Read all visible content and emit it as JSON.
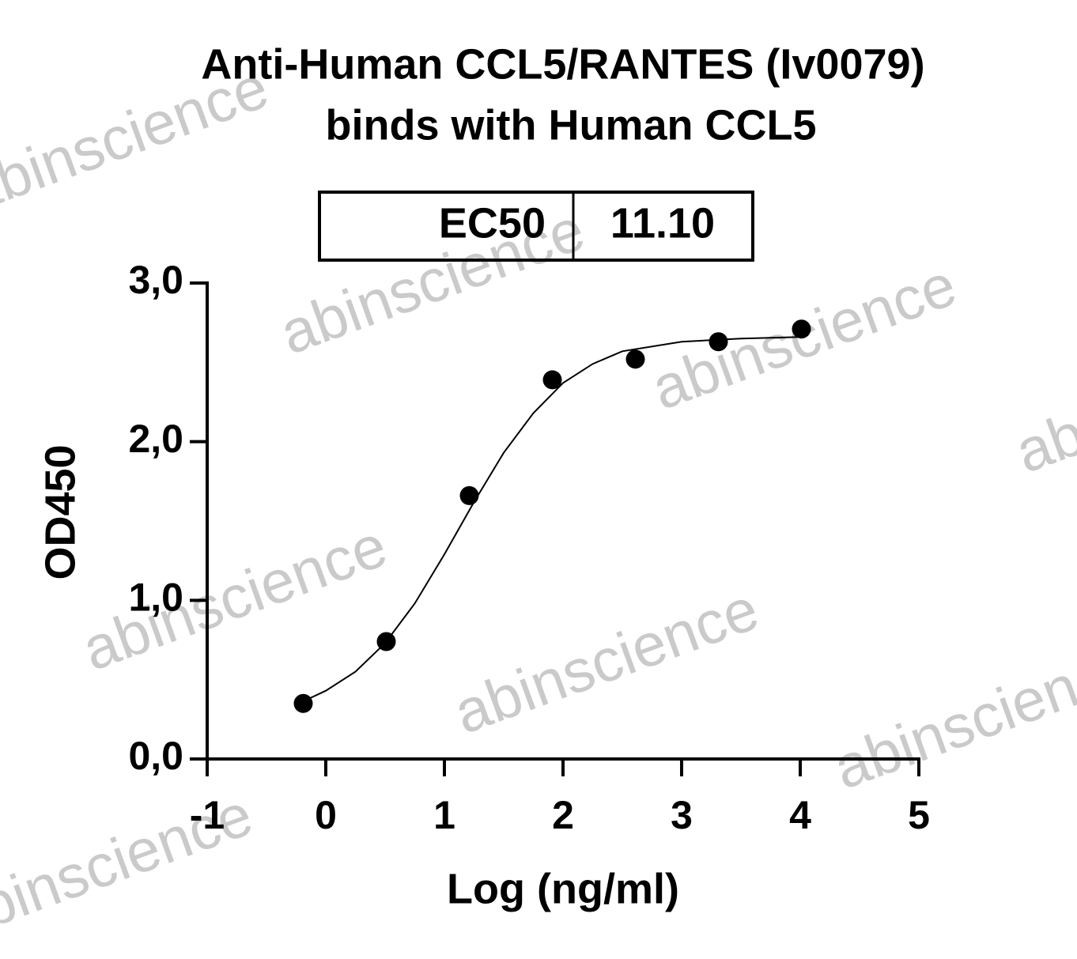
{
  "chart_data": {
    "type": "scatter",
    "title": [
      "Anti-Human CCL5/RANTES (Iv0079)",
      "binds with Human CCL5"
    ],
    "ec50": {
      "label": "EC50",
      "value": "11.10"
    },
    "x_label": "Log (ng/ml)",
    "y_label": "OD450",
    "watermark": "abinscience",
    "x": [
      -0.19,
      0.51,
      1.21,
      1.91,
      2.61,
      3.31,
      4.01
    ],
    "values": [
      0.35,
      0.74,
      1.66,
      2.39,
      2.52,
      2.63,
      2.71
    ],
    "color": "#000000",
    "curve": {
      "x": [
        -0.2,
        0,
        0.25,
        0.5,
        0.75,
        1,
        1.25,
        1.5,
        1.75,
        2,
        2.25,
        2.5,
        3,
        3.5,
        4
      ],
      "y": [
        0.36,
        0.43,
        0.55,
        0.73,
        0.98,
        1.29,
        1.62,
        1.93,
        2.18,
        2.37,
        2.49,
        2.57,
        2.63,
        2.65,
        2.66
      ]
    },
    "xlim": [
      -1,
      5
    ],
    "xticks": [
      -1,
      0,
      1,
      2,
      3,
      4,
      5
    ],
    "ylim": [
      0,
      3
    ],
    "yticks": [
      {
        "value": 0,
        "label": "0,0"
      },
      {
        "value": 1,
        "label": "1,0"
      },
      {
        "value": 2,
        "label": "2,0"
      },
      {
        "value": 3,
        "label": "3,0"
      }
    ]
  }
}
